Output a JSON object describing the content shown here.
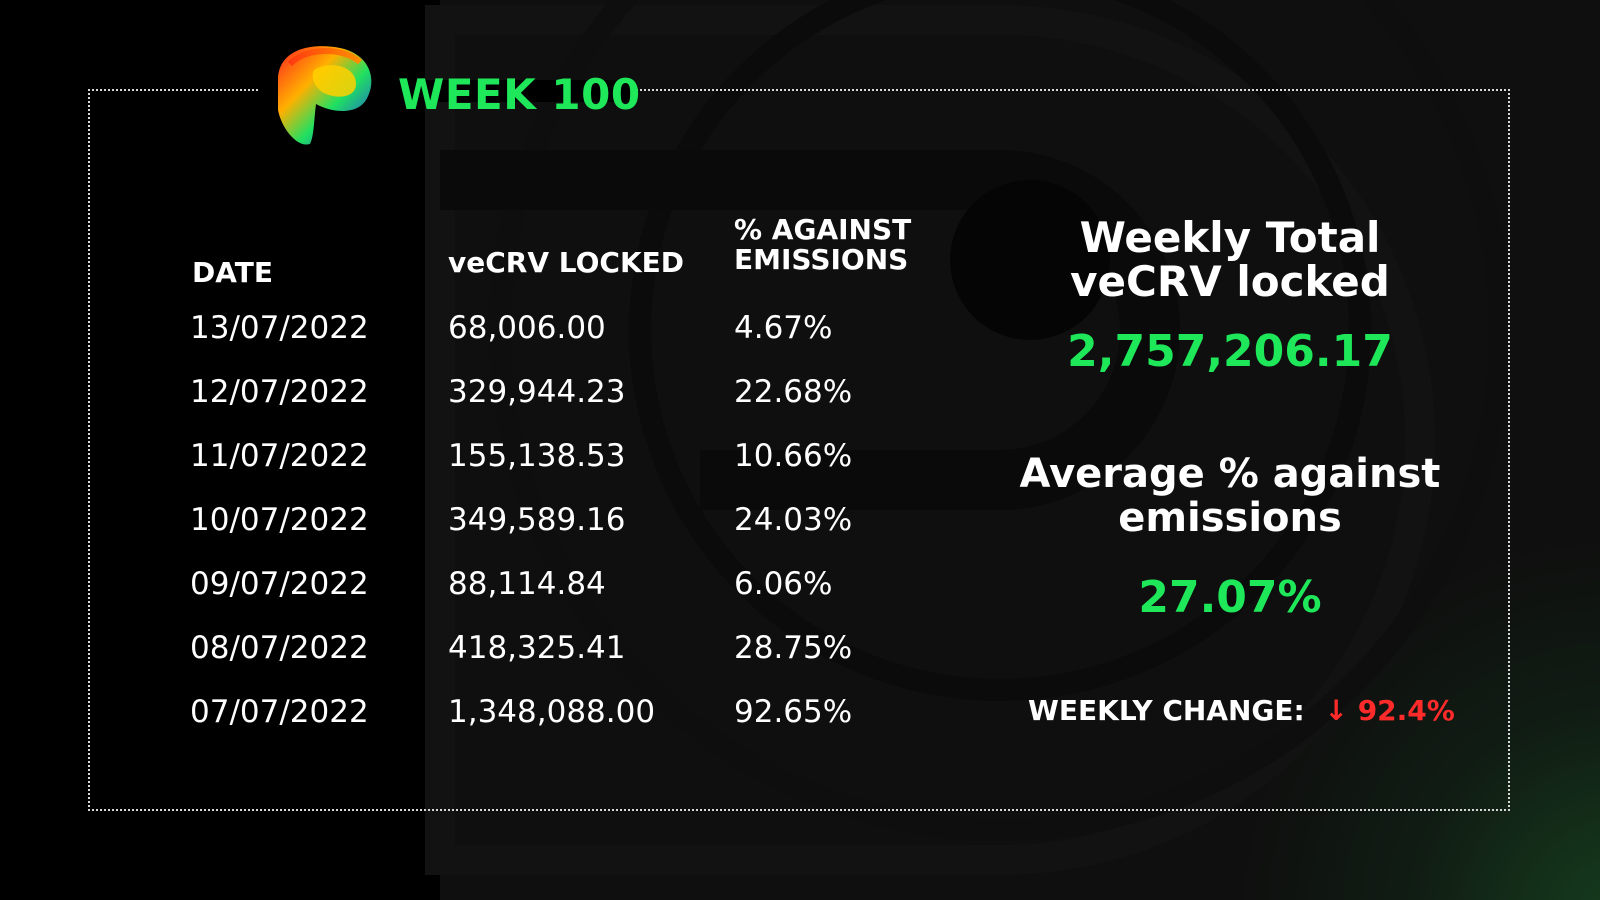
{
  "header": {
    "week_title": "WEEK 100"
  },
  "table": {
    "columns": {
      "date": "DATE",
      "locked": "veCRV LOCKED",
      "pct_line1": "% AGAINST",
      "pct_line2": "EMISSIONS"
    },
    "rows": [
      {
        "date": "13/07/2022",
        "locked": "68,006.00",
        "pct": "4.67%"
      },
      {
        "date": "12/07/2022",
        "locked": "329,944.23",
        "pct": "22.68%"
      },
      {
        "date": "11/07/2022",
        "locked": "155,138.53",
        "pct": "10.66%"
      },
      {
        "date": "10/07/2022",
        "locked": "349,589.16",
        "pct": "24.03%"
      },
      {
        "date": "09/07/2022",
        "locked": "88,114.84",
        "pct": "6.06%"
      },
      {
        "date": "08/07/2022",
        "locked": "418,325.41",
        "pct": "28.75%"
      },
      {
        "date": "07/07/2022",
        "locked": "1,348,088.00",
        "pct": "92.65%"
      }
    ]
  },
  "summary": {
    "weekly_total_line1": "Weekly Total",
    "weekly_total_line2": "veCRV locked",
    "weekly_total_value": "2,757,206.17",
    "avg_line1": "Average % against",
    "avg_line2": "emissions",
    "avg_value": "27.07%",
    "weekly_change_label": "WEEKLY CHANGE:",
    "weekly_change_arrow": "↓",
    "weekly_change_value": "92.4%"
  },
  "colors": {
    "accent_green": "#1ee85a",
    "negative_red": "#ff2b2b",
    "background": "#000000"
  }
}
